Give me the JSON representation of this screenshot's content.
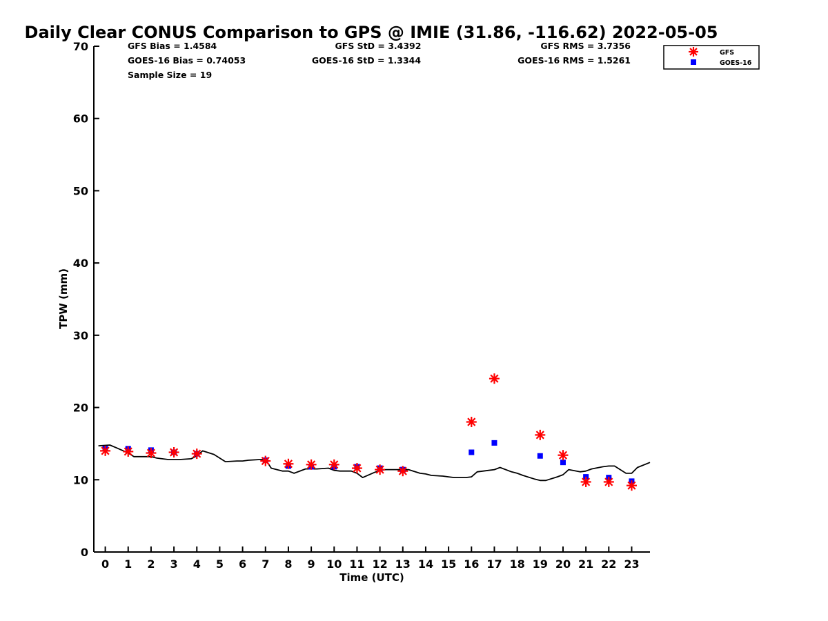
{
  "chart_data": {
    "type": "scatter",
    "title": "Daily Clear CONUS Comparison to GPS @ IMIE (31.86, -116.62) 2022-05-05",
    "xlabel": "Time (UTC)",
    "ylabel": "TPW (mm)",
    "xlim": [
      -0.5,
      23.8
    ],
    "ylim": [
      0,
      70
    ],
    "x_ticks": [
      "0",
      "1",
      "2",
      "3",
      "4",
      "5",
      "6",
      "7",
      "8",
      "9",
      "10",
      "11",
      "12",
      "13",
      "14",
      "15",
      "16",
      "17",
      "18",
      "19",
      "20",
      "21",
      "22",
      "23"
    ],
    "y_ticks": [
      "0",
      "10",
      "20",
      "30",
      "40",
      "50",
      "60",
      "70"
    ],
    "stats": {
      "gfs_bias": "GFS Bias = 1.4584",
      "goes_bias": "GOES-16 Bias = 0.74053",
      "sample_size": "Sample Size = 19",
      "gfs_std": "GFS StD = 3.4392",
      "goes_std": "GOES-16 StD = 1.3344",
      "gfs_rms": "GFS RMS = 3.7356",
      "goes_rms": "GOES-16 RMS = 1.5261"
    },
    "legend_position": "top-right (outside plot)",
    "series": [
      {
        "name": "GFS",
        "marker": "asterisk",
        "color": "#ff0000",
        "x": [
          0,
          1,
          2,
          3,
          4,
          7,
          8,
          9,
          10,
          11,
          12,
          13,
          16,
          17,
          19,
          20,
          21,
          22,
          23
        ],
        "y": [
          14.0,
          13.9,
          13.7,
          13.8,
          13.6,
          12.6,
          12.2,
          12.1,
          12.1,
          11.6,
          11.4,
          11.2,
          18.0,
          24.0,
          16.2,
          13.4,
          9.7,
          9.7,
          9.2
        ]
      },
      {
        "name": "GOES-16",
        "marker": "square",
        "color": "#0000ff",
        "x": [
          0,
          1,
          2,
          3,
          4,
          7,
          8,
          9,
          10,
          11,
          12,
          13,
          16,
          17,
          19,
          20,
          21,
          22,
          23
        ],
        "y": [
          14.3,
          14.3,
          14.1,
          13.8,
          13.6,
          12.7,
          11.9,
          11.8,
          11.8,
          11.8,
          11.6,
          11.4,
          13.8,
          15.1,
          13.3,
          12.4,
          10.4,
          10.3,
          9.8
        ]
      },
      {
        "name": "GPS",
        "marker": "line",
        "color": "#000000",
        "x": [
          -0.3,
          0.2,
          0.5,
          1,
          1.25,
          1.75,
          2,
          2.25,
          2.75,
          3,
          3.25,
          3.75,
          4,
          4.25,
          4.75,
          5,
          5.25,
          5.75,
          6,
          6.25,
          6.75,
          7,
          7.25,
          7.75,
          8,
          8.25,
          8.75,
          9,
          9.25,
          9.75,
          10,
          10.25,
          10.75,
          11,
          11.25,
          11.75,
          12,
          12.25,
          12.75,
          13,
          13.25,
          13.75,
          14,
          14.25,
          14.75,
          15,
          15.25,
          15.75,
          16,
          16.25,
          16.75,
          17,
          17.25,
          17.75,
          18,
          18.25,
          18.75,
          19,
          19.25,
          19.75,
          20,
          20.25,
          20.75,
          21,
          21.25,
          21.75,
          22,
          22.25,
          22.75,
          23,
          23.25,
          23.8
        ],
        "y": [
          14.7,
          14.8,
          14.4,
          13.7,
          13.2,
          13.2,
          13.2,
          13.0,
          12.8,
          12.8,
          12.8,
          12.9,
          13.3,
          14.0,
          13.5,
          13.0,
          12.5,
          12.6,
          12.6,
          12.7,
          12.8,
          12.8,
          11.6,
          11.2,
          11.2,
          10.9,
          11.5,
          11.5,
          11.5,
          11.6,
          11.3,
          11.2,
          11.2,
          10.9,
          10.3,
          11.0,
          11.3,
          11.4,
          11.4,
          11.4,
          11.4,
          10.9,
          10.8,
          10.6,
          10.5,
          10.4,
          10.3,
          10.3,
          10.4,
          11.1,
          11.3,
          11.4,
          11.7,
          11.1,
          10.9,
          10.6,
          10.1,
          9.9,
          9.9,
          10.4,
          10.7,
          11.4,
          11.1,
          11.2,
          11.5,
          11.8,
          11.9,
          11.9,
          10.9,
          10.9,
          11.7,
          12.4
        ]
      }
    ]
  }
}
